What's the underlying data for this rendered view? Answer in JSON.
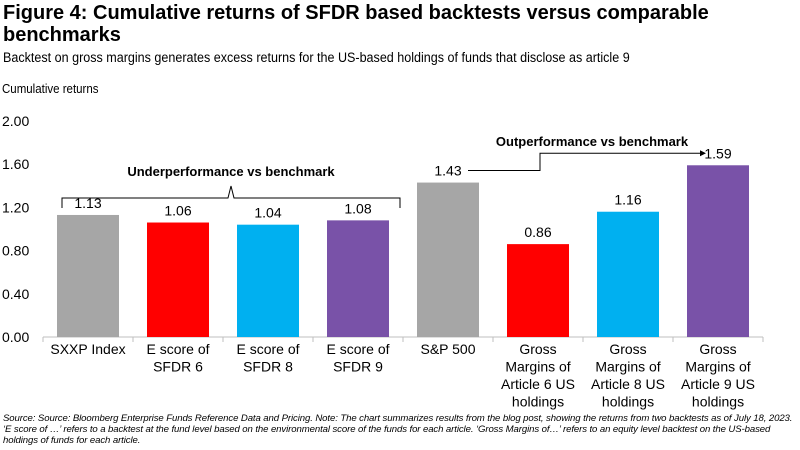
{
  "title": "Figure 4: Cumulative returns of SFDR based backtests versus comparable benchmarks",
  "subtitle": "Backtest on gross margins generates excess returns for the US-based holdings of funds that disclose as article 9",
  "source": "Source: Source: Bloomberg Enterprise Funds Reference Data and Pricing. Note: The chart summarizes results from the blog post, showing the returns from two backtests as of July 18, 2023. ‘E score of …’ refers to a backtest at the fund level based on the environmental score of the funds for each article. ‘Gross Margins of…’ refers to an equity level backtest on the US-based holdings of funds for each article.",
  "chart_data": {
    "type": "bar",
    "title": "",
    "ylabel": "Cumulative returns",
    "xlabel": "",
    "ylim": [
      0,
      2.0
    ],
    "yticks": [
      "0.00",
      "0.40",
      "0.80",
      "1.20",
      "1.60",
      "2.00"
    ],
    "grid": false,
    "categories": [
      [
        "SXXP Index"
      ],
      [
        "E score of",
        "SFDR 6"
      ],
      [
        "E score of",
        "SFDR 8"
      ],
      [
        "E score of",
        "SFDR 9"
      ],
      [
        "S&P 500"
      ],
      [
        "Gross",
        "Margins of",
        "Article 6 US",
        "holdings"
      ],
      [
        "Gross",
        "Margins of",
        "Article 8 US",
        "holdings"
      ],
      [
        "Gross",
        "Margins of",
        "Article 9 US",
        "holdings"
      ]
    ],
    "values": [
      1.13,
      1.06,
      1.04,
      1.08,
      1.43,
      0.86,
      1.16,
      1.59
    ],
    "data_labels": [
      "1.13",
      "1.06",
      "1.04",
      "1.08",
      "1.43",
      "0.86",
      "1.16",
      "1.59"
    ],
    "colors": [
      "#a6a6a6",
      "#ff0000",
      "#00b0f0",
      "#7952a8",
      "#a6a6a6",
      "#ff0000",
      "#00b0f0",
      "#7952a8"
    ],
    "annotations": {
      "underperformance": "Underperformance vs benchmark",
      "outperformance": "Outperformance vs benchmark"
    }
  }
}
